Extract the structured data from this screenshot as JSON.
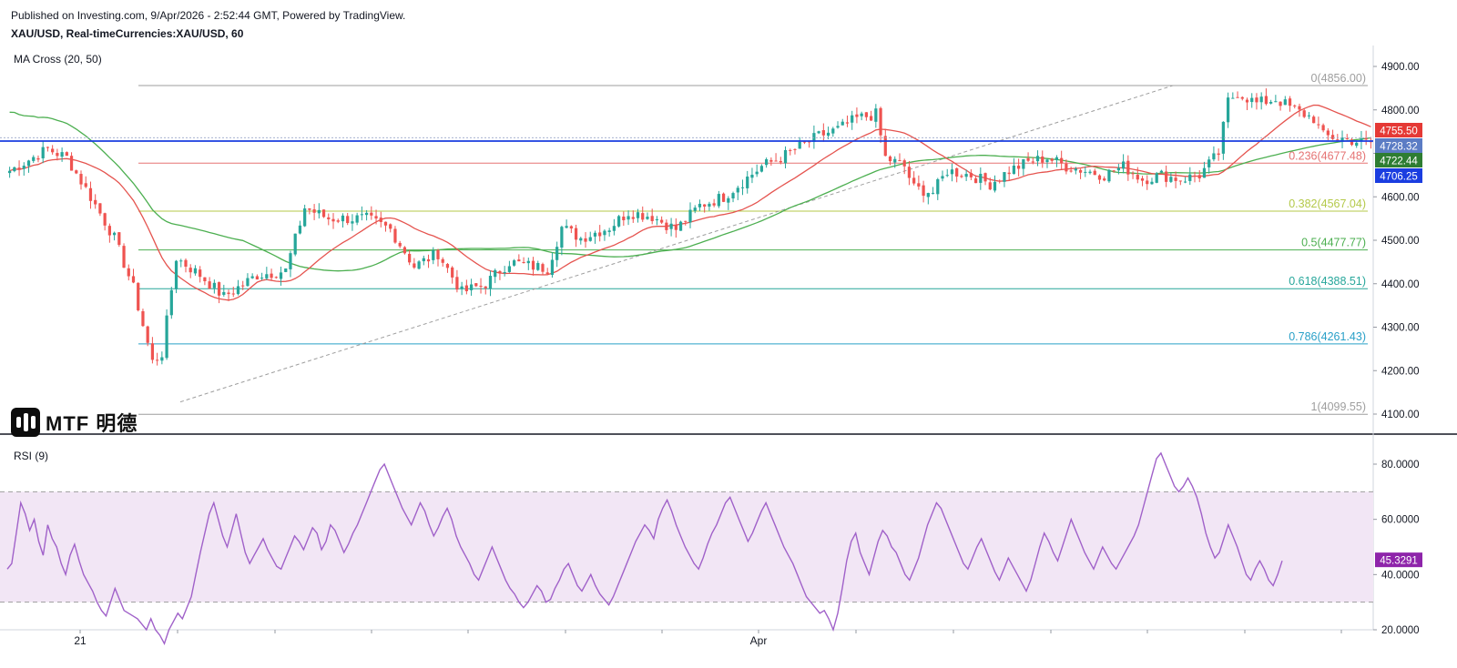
{
  "header": {
    "line1": "Published on Investing.com, 9/Apr/2026 - 2:52:44 GMT, Powered by TradingView.",
    "line2": "XAU/USD, Real-timeCurrencies:XAU/USD, 60"
  },
  "indicators": {
    "ma_label": "MA Cross (20, 50)",
    "rsi_label": "RSI (9)"
  },
  "logo": {
    "text": "MTF 明德"
  },
  "colors": {
    "bull": "#26a69a",
    "bear": "#ef5350",
    "ma20": "#e5544f",
    "ma50": "#4caf50",
    "rsi_line": "#a061c9",
    "rsi_band": "#f2e6f5",
    "price_line": "#1a3de0"
  },
  "chart_data": [
    {
      "type": "candlestick",
      "symbol": "XAU/USD",
      "interval": "60",
      "x_tick_labels": [
        "21",
        "Apr"
      ],
      "y_ticks": [
        4100,
        4200,
        4300,
        4400,
        4500,
        4600,
        4700,
        4800,
        4900
      ],
      "y_tick_labels": [
        "4100.00",
        "4200.00",
        "4300.00",
        "4400.00",
        "4500.00",
        "4600.00",
        "4700.00",
        "4800.00",
        "4900.00"
      ],
      "ylim": [
        4080,
        4940
      ],
      "close_path": [
        [
          0,
          4660
        ],
        [
          8,
          4710
        ],
        [
          12,
          4690
        ],
        [
          17,
          4600
        ],
        [
          22,
          4505
        ],
        [
          26,
          4390
        ],
        [
          30,
          4220
        ],
        [
          32,
          4240
        ],
        [
          35,
          4460
        ],
        [
          40,
          4420
        ],
        [
          45,
          4370
        ],
        [
          52,
          4420
        ],
        [
          58,
          4430
        ],
        [
          62,
          4575
        ],
        [
          67,
          4550
        ],
        [
          75,
          4550
        ],
        [
          80,
          4525
        ],
        [
          85,
          4440
        ],
        [
          90,
          4470
        ],
        [
          95,
          4380
        ],
        [
          100,
          4400
        ],
        [
          105,
          4450
        ],
        [
          110,
          4440
        ],
        [
          113,
          4435
        ],
        [
          116,
          4530
        ],
        [
          120,
          4505
        ],
        [
          126,
          4530
        ],
        [
          130,
          4565
        ],
        [
          135,
          4555
        ],
        [
          140,
          4525
        ],
        [
          145,
          4580
        ],
        [
          150,
          4600
        ],
        [
          154,
          4635
        ],
        [
          158,
          4670
        ],
        [
          162,
          4690
        ],
        [
          166,
          4715
        ],
        [
          170,
          4740
        ],
        [
          174,
          4755
        ],
        [
          178,
          4780
        ],
        [
          182,
          4790
        ],
        [
          184,
          4690
        ],
        [
          188,
          4670
        ],
        [
          190,
          4620
        ],
        [
          194,
          4610
        ],
        [
          197,
          4660
        ],
        [
          202,
          4650
        ],
        [
          206,
          4630
        ],
        [
          210,
          4660
        ],
        [
          214,
          4680
        ],
        [
          218,
          4690
        ],
        [
          222,
          4670
        ],
        [
          226,
          4660
        ],
        [
          230,
          4650
        ],
        [
          234,
          4670
        ],
        [
          238,
          4640
        ],
        [
          242,
          4650
        ],
        [
          246,
          4640
        ],
        [
          250,
          4650
        ],
        [
          254,
          4700
        ],
        [
          256,
          4820
        ],
        [
          258,
          4840
        ],
        [
          262,
          4815
        ],
        [
          266,
          4825
        ],
        [
          270,
          4800
        ],
        [
          274,
          4780
        ],
        [
          276,
          4740
        ],
        [
          280,
          4735
        ],
        [
          284,
          4725
        ],
        [
          286,
          4725
        ]
      ],
      "fibonacci": [
        {
          "label": "0(4856.00)",
          "price": 4856.0,
          "color": "#9e9e9e"
        },
        {
          "label": "0.236(4677.48)",
          "price": 4677.48,
          "color": "#e57373"
        },
        {
          "label": "0.382(4567.04)",
          "price": 4567.04,
          "color": "#b4c94a"
        },
        {
          "label": "0.5(4477.77)",
          "price": 4477.77,
          "color": "#4caf50"
        },
        {
          "label": "0.618(4388.51)",
          "price": 4388.51,
          "color": "#26a69a"
        },
        {
          "label": "0.786(4261.43)",
          "price": 4261.43,
          "color": "#29a0c8"
        },
        {
          "label": "1(4099.55)",
          "price": 4099.55,
          "color": "#9e9e9e"
        }
      ],
      "price_tags": [
        {
          "label": "4755.50",
          "price": 4755.5,
          "color": "#e53935"
        },
        {
          "label": "4728.32",
          "price": 4728.32,
          "color": "#5b7cc4"
        },
        {
          "label": "4722.44",
          "price": 4722.44,
          "color": "#2e7d32"
        },
        {
          "label": "4706.25",
          "price": 4706.25,
          "color": "#1a3de0"
        }
      ],
      "horizontal_line": 4728.32
    },
    {
      "type": "line",
      "name": "RSI (9)",
      "y_ticks": [
        20,
        40,
        60,
        80
      ],
      "y_tick_labels": [
        "20.0000",
        "40.0000",
        "60.0000",
        "80.0000"
      ],
      "ylim": [
        10,
        90
      ],
      "bands": [
        30,
        70
      ],
      "values": [
        42,
        44,
        55,
        66,
        62,
        56,
        60,
        52,
        47,
        58,
        53,
        50,
        44,
        40,
        47,
        51,
        45,
        40,
        37,
        34,
        30,
        27,
        25,
        30,
        35,
        31,
        27,
        26,
        25,
        24,
        22,
        20,
        24,
        20,
        18,
        15,
        20,
        23,
        26,
        24,
        28,
        32,
        40,
        48,
        55,
        62,
        66,
        60,
        54,
        50,
        56,
        62,
        55,
        48,
        44,
        47,
        50,
        53,
        49,
        46,
        43,
        42,
        46,
        50,
        54,
        52,
        49,
        53,
        57,
        55,
        49,
        52,
        58,
        56,
        52,
        48,
        51,
        55,
        58,
        62,
        66,
        70,
        74,
        78,
        80,
        76,
        72,
        68,
        64,
        61,
        58,
        62,
        66,
        63,
        58,
        54,
        57,
        61,
        64,
        60,
        54,
        50,
        47,
        44,
        40,
        38,
        42,
        46,
        50,
        46,
        42,
        38,
        35,
        33,
        30,
        28,
        30,
        33,
        36,
        34,
        30,
        31,
        35,
        38,
        42,
        44,
        40,
        36,
        34,
        37,
        40,
        36,
        33,
        31,
        29,
        32,
        36,
        40,
        44,
        48,
        52,
        55,
        58,
        56,
        53,
        60,
        64,
        67,
        63,
        58,
        54,
        50,
        47,
        44,
        42,
        46,
        51,
        55,
        58,
        62,
        66,
        68,
        64,
        60,
        56,
        52,
        55,
        59,
        63,
        66,
        62,
        58,
        54,
        50,
        47,
        44,
        40,
        36,
        32,
        30,
        28,
        26,
        27,
        24,
        20,
        26,
        35,
        45,
        52,
        55,
        48,
        44,
        40,
        46,
        52,
        56,
        54,
        50,
        48,
        44,
        40,
        38,
        42,
        46,
        52,
        58,
        62,
        66,
        64,
        60,
        56,
        52,
        48,
        44,
        42,
        46,
        50,
        53,
        49,
        45,
        41,
        38,
        42,
        46,
        43,
        40,
        37,
        34,
        38,
        44,
        50,
        55,
        52,
        48,
        45,
        50,
        55,
        60,
        56,
        52,
        48,
        45,
        42,
        46,
        50,
        47,
        44,
        42,
        45,
        48,
        51,
        54,
        58,
        64,
        70,
        76,
        82,
        84,
        80,
        76,
        72,
        70,
        72,
        75,
        72,
        68,
        62,
        55,
        50,
        46,
        48,
        53,
        58,
        54,
        50,
        45,
        40,
        38,
        42,
        45,
        42,
        38,
        36,
        40,
        45
      ]
    }
  ]
}
